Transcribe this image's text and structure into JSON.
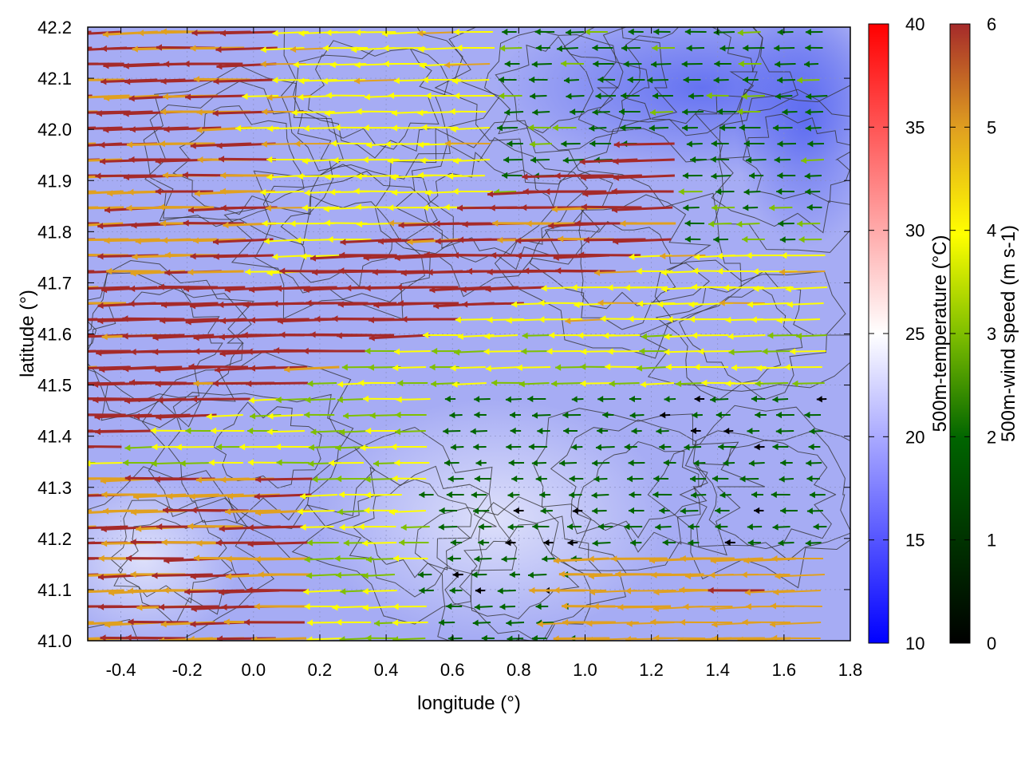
{
  "chart_data": {
    "type": "heatmap",
    "title": "",
    "xlabel": "longitude (°)",
    "ylabel": "latitude (°)",
    "xlim": [
      -0.5,
      1.8
    ],
    "ylim": [
      41.0,
      42.2
    ],
    "x_ticks": [
      "-0.4",
      "-0.2",
      "0.0",
      "0.2",
      "0.4",
      "0.6",
      "0.8",
      "1.0",
      "1.2",
      "1.4",
      "1.6",
      "1.8"
    ],
    "y_ticks": [
      "41.0",
      "41.1",
      "41.2",
      "41.3",
      "41.4",
      "41.5",
      "41.6",
      "41.7",
      "41.8",
      "41.9",
      "42.0",
      "42.1",
      "42.2"
    ],
    "grid": true,
    "temperature_colorbar": {
      "label": "500m-temperature (°C)",
      "range": [
        10,
        40
      ],
      "ticks": [
        "10",
        "15",
        "20",
        "25",
        "30",
        "35",
        "40"
      ],
      "colors": [
        "#0000ff",
        "#ffffff",
        "#ff0000"
      ]
    },
    "wind_colorbar": {
      "label": "500m-wind speed (m s-1)",
      "range": [
        0,
        6
      ],
      "ticks": [
        "0",
        "1",
        "2",
        "3",
        "4",
        "5",
        "6"
      ],
      "colors": [
        "#000000",
        "#006400",
        "#7fbf00",
        "#ffff00",
        "#e0a020",
        "#a52a2a"
      ]
    },
    "temperature_field_approx_c": [
      {
        "region": "most of domain",
        "value": 20
      },
      {
        "region": "north-east corner",
        "value": 15
      },
      {
        "region": "south-central lowlands",
        "value": 22
      }
    ],
    "wind_bands": [
      {
        "region": "north-west",
        "speed": 5.8,
        "direction": "westward"
      },
      {
        "region": "north-central",
        "speed": 3.5,
        "direction": "westward"
      },
      {
        "region": "north-east",
        "speed": 1.5,
        "direction": "mixed"
      },
      {
        "region": "central diagonal band",
        "speed": 5.8,
        "direction": "west-south-westward"
      },
      {
        "region": "central-east",
        "speed": 1.5,
        "direction": "westward"
      },
      {
        "region": "south-west",
        "speed": 5.8,
        "direction": "westward"
      },
      {
        "region": "south-central",
        "speed": 1.0,
        "direction": "mixed"
      },
      {
        "region": "south-east",
        "speed": 5.0,
        "direction": "westward"
      }
    ]
  }
}
